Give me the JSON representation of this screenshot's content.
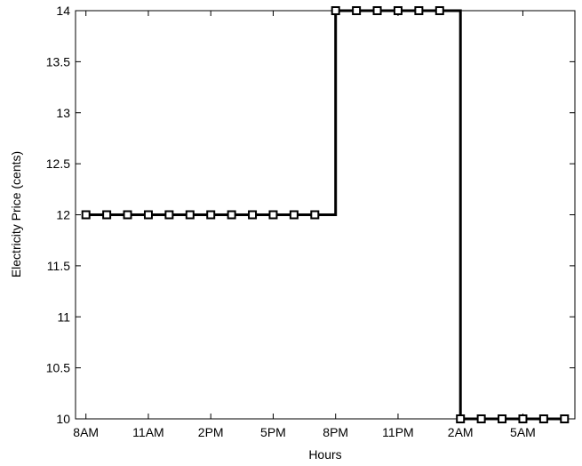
{
  "chart_data": {
    "type": "line",
    "title": "",
    "xlabel": "Hours",
    "ylabel": "Electricity Price (cents)",
    "x": [
      1,
      2,
      3,
      4,
      5,
      6,
      7,
      8,
      9,
      10,
      11,
      12,
      13,
      14,
      15,
      16,
      17,
      18,
      19,
      20,
      21,
      22,
      23,
      24
    ],
    "x_ticks": [
      1,
      4,
      7,
      10,
      13,
      16,
      19,
      22
    ],
    "x_tick_labels": [
      "8AM",
      "11AM",
      "2PM",
      "5PM",
      "8PM",
      "11PM",
      "2AM",
      "5AM"
    ],
    "xlim": [
      0.5,
      24.5
    ],
    "ylim": [
      10,
      14
    ],
    "y_ticks": [
      10,
      10.5,
      11,
      11.5,
      12,
      12.5,
      13,
      13.5,
      14
    ],
    "y_tick_labels": [
      "10",
      "10.5",
      "11",
      "11.5",
      "12",
      "12.5",
      "13",
      "13.5",
      "14"
    ],
    "series": [
      {
        "values": [
          12,
          12,
          12,
          12,
          12,
          12,
          12,
          12,
          12,
          12,
          12,
          12,
          14,
          14,
          14,
          14,
          14,
          14,
          10,
          10,
          10,
          10,
          10,
          10
        ],
        "color": "#000000",
        "marker": "square",
        "line_style": "step"
      }
    ],
    "grid": false,
    "legend": "none"
  }
}
